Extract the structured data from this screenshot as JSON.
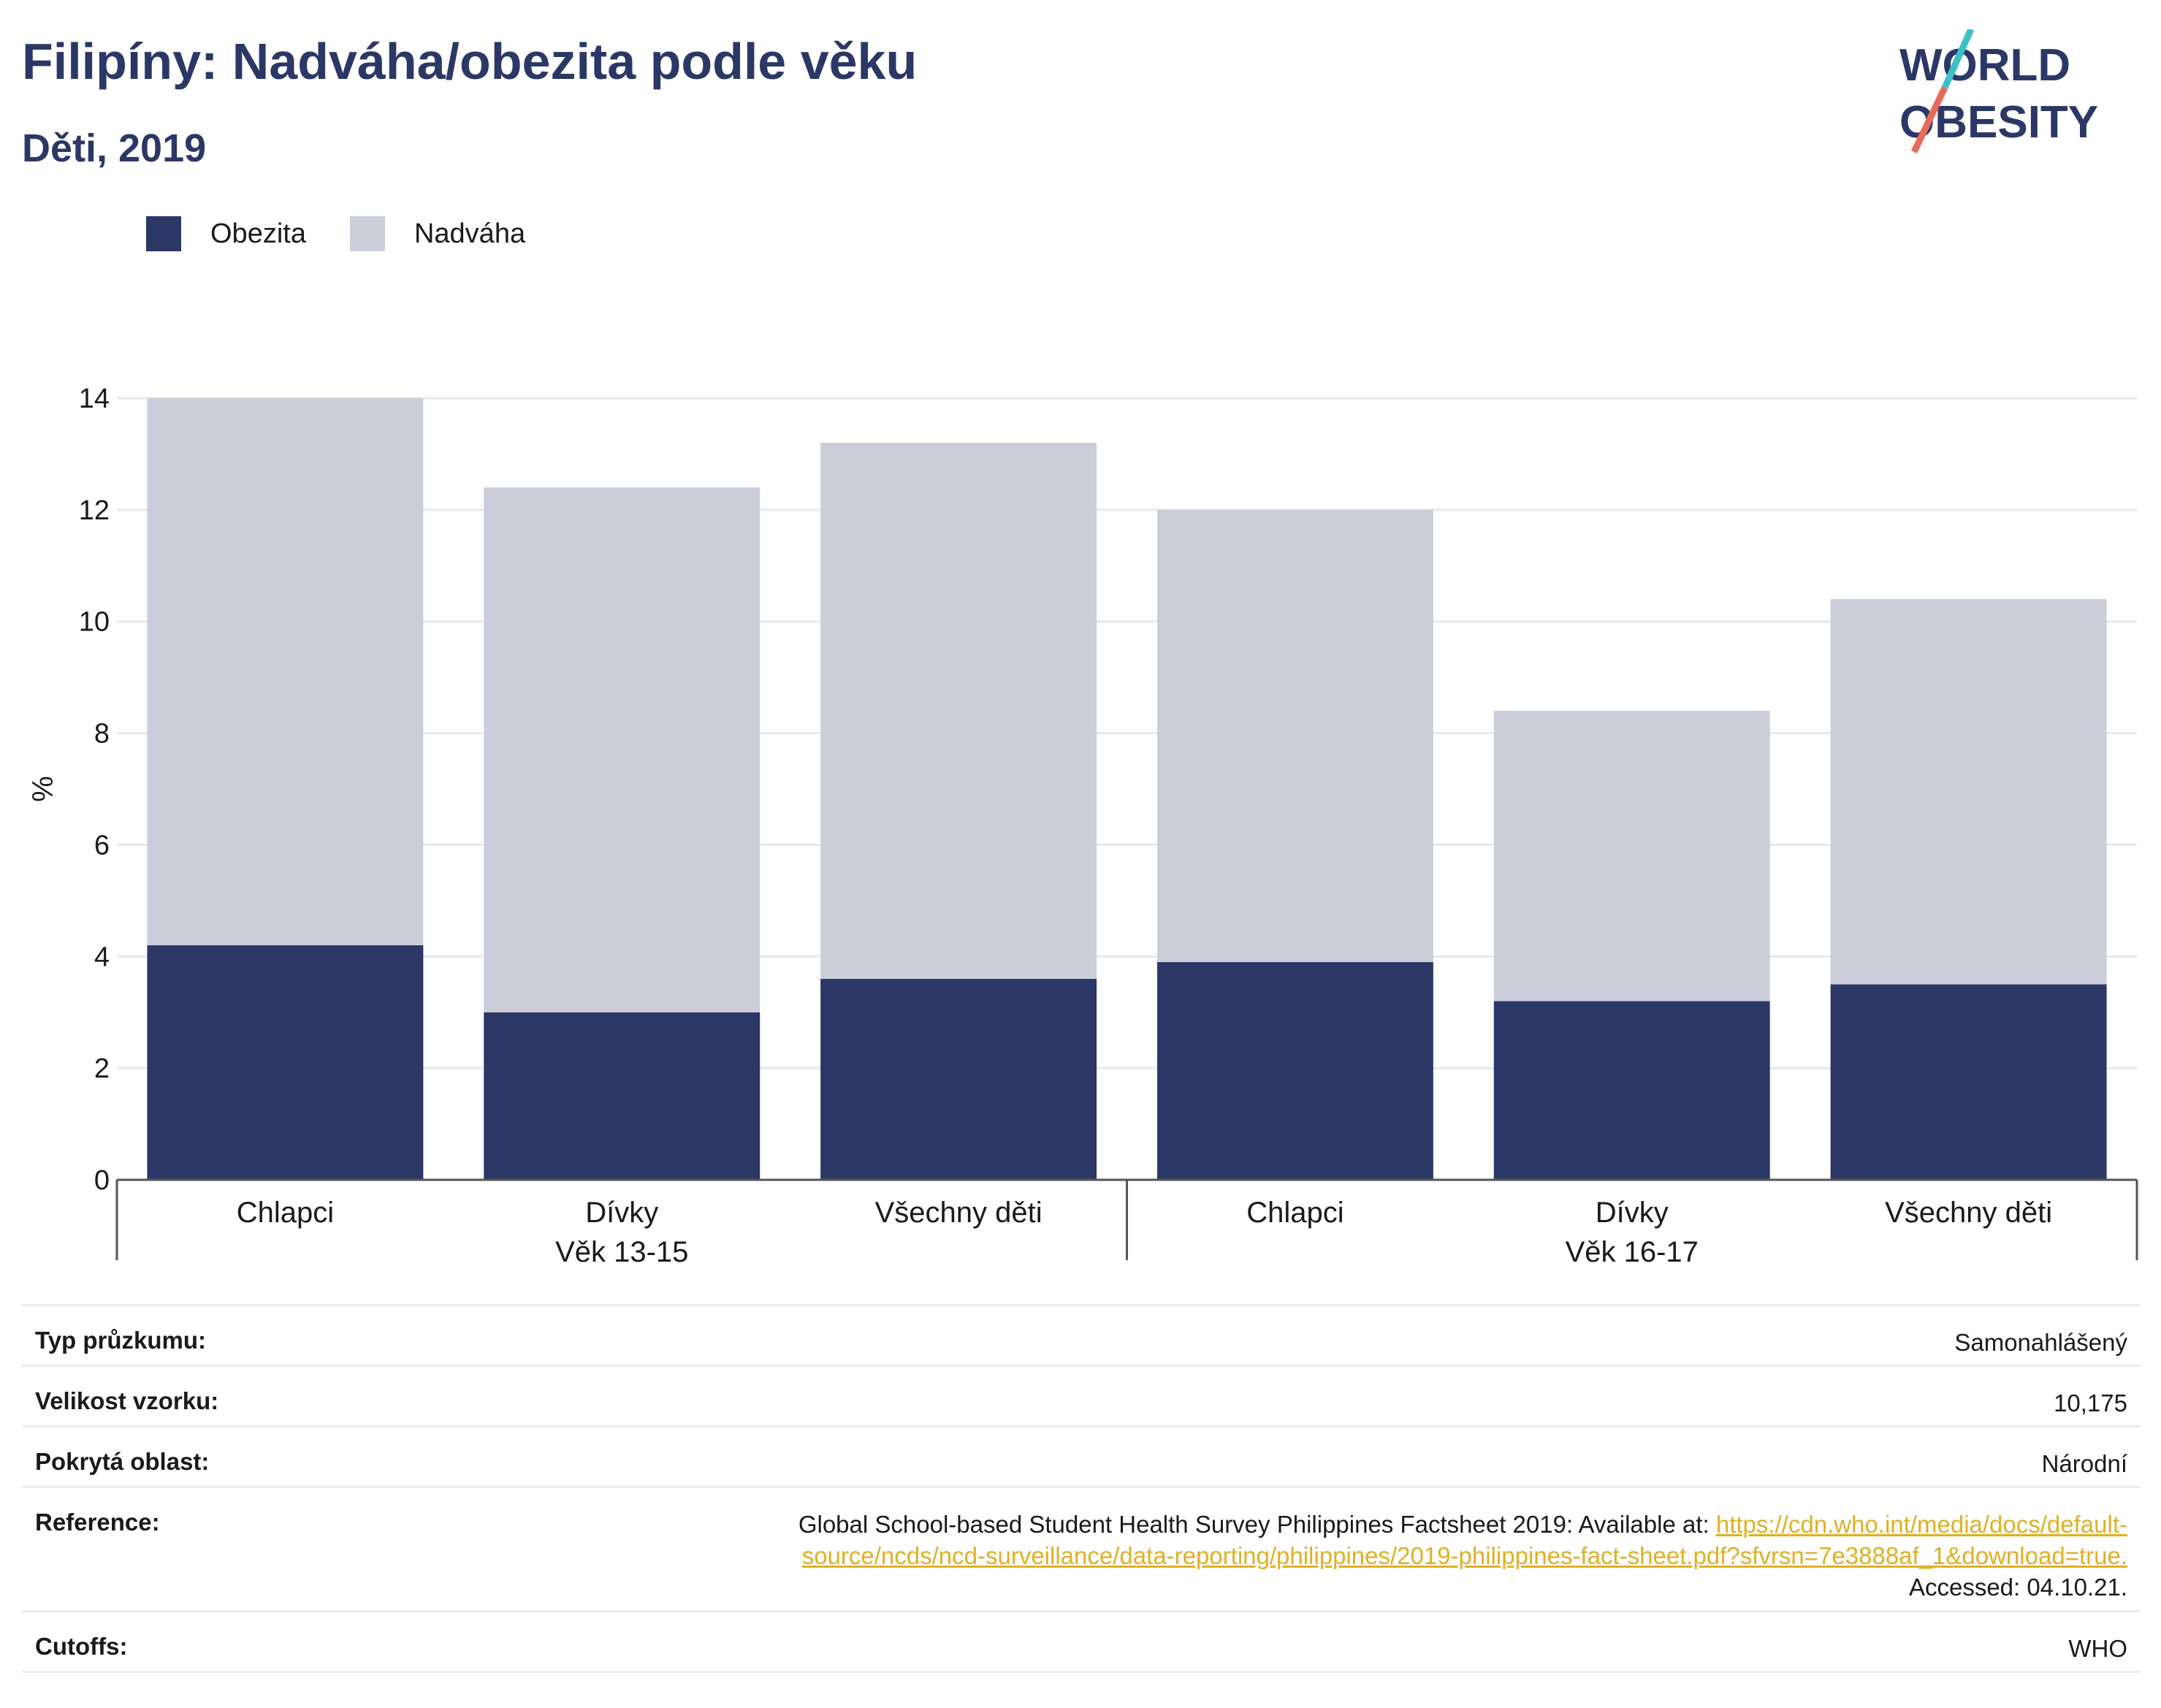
{
  "header": {
    "title": "Filipíny: Nadváha/obezita podle věku",
    "subtitle": "Děti, 2019"
  },
  "logo": {
    "line1": "WORLD",
    "line2": "OBESITY"
  },
  "colors": {
    "obesity": "#2b3764",
    "overweight": "#cbcdd9",
    "accent_teal": "#3cc1c6",
    "accent_coral": "#e56c5c",
    "link": "#e0b023"
  },
  "legend": [
    {
      "label": "Obezita",
      "color": "#2b3764"
    },
    {
      "label": "Nadváha",
      "color": "#cbcdd9"
    }
  ],
  "chart_data": {
    "type": "bar",
    "stacked": true,
    "ylabel": "%",
    "ylim": [
      0,
      14
    ],
    "yticks": [
      "0",
      "2",
      "4",
      "6",
      "8",
      "10",
      "12",
      "14"
    ],
    "categories": [
      "Chlapci",
      "Dívky",
      "Všechny děti",
      "Chlapci",
      "Dívky",
      "Všechny děti"
    ],
    "groups": [
      {
        "label": "Věk 13-15",
        "categories": [
          "Chlapci",
          "Dívky",
          "Všechny děti"
        ]
      },
      {
        "label": "Věk 16-17",
        "categories": [
          "Chlapci",
          "Dívky",
          "Všechny děti"
        ]
      }
    ],
    "series": [
      {
        "name": "Obezita",
        "values": [
          4.2,
          3.0,
          3.6,
          3.9,
          3.2,
          3.5
        ]
      },
      {
        "name": "Nadváha",
        "values": [
          9.8,
          9.4,
          9.6,
          8.1,
          5.2,
          6.9
        ]
      }
    ],
    "grid": true
  },
  "meta": [
    {
      "key": "Typ průzkumu:",
      "value": "Samonahlášený"
    },
    {
      "key": "Velikost vzorku:",
      "value": "10,175"
    },
    {
      "key": "Pokrytá oblast:",
      "value": "Národní"
    },
    {
      "key": "Reference:",
      "value_prefix": "Global School-based Student Health Survey Philippines Factsheet 2019: Available at:",
      "link_1": "https://cdn.who.int/media/docs/default-",
      "link_2": "source/ncds/ncd-surveillance/data-reporting/philippines/2019-philippines-fact-sheet.pdf?sfvrsn=7e3888af_1&download=true.",
      "value_suffix": "Accessed: 04.10.21."
    },
    {
      "key": "Cutoffs:",
      "value": "WHO"
    }
  ]
}
